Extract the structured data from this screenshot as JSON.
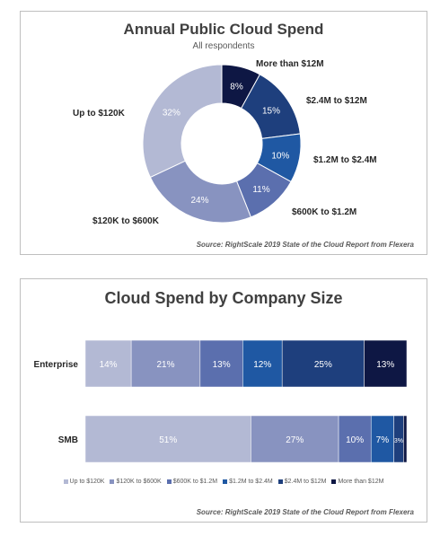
{
  "colors": {
    "up_to_120k": "#b3b9d4",
    "k120_to_600k": "#8893c0",
    "k600_to_1_2m": "#5b6fae",
    "m1_2_to_2_4m": "#1f58a3",
    "m2_4_to_12m": "#1e3f7d",
    "more_than_12m": "#0e1744"
  },
  "chart_data": [
    {
      "type": "pie",
      "donut": true,
      "title": "Annual Public Cloud Spend",
      "subtitle": "All respondents",
      "source": "Source: RightScale 2019 State of the Cloud Report from Flexera",
      "slices": [
        {
          "label": "More than $12M",
          "value": 8,
          "display": "8%"
        },
        {
          "label": "$2.4M to $12M",
          "value": 15,
          "display": "15%"
        },
        {
          "label": "$1.2M to $2.4M",
          "value": 10,
          "display": "10%"
        },
        {
          "label": "$600K to $1.2M",
          "value": 11,
          "display": "11%"
        },
        {
          "label": "$120K to $600K",
          "value": 24,
          "display": "24%"
        },
        {
          "label": "Up to $120K",
          "value": 32,
          "display": "32%"
        }
      ]
    },
    {
      "type": "bar",
      "stacked": true,
      "orientation": "horizontal",
      "title": "Cloud Spend by Company Size",
      "source": "Source: RightScale 2019 State of the Cloud Report from Flexera",
      "categories": [
        "Enterprise",
        "SMB"
      ],
      "series": [
        {
          "name": "Up to $120K",
          "values": [
            14,
            51
          ],
          "labels": [
            "14%",
            "51%"
          ]
        },
        {
          "name": "$120K to $600K",
          "values": [
            21,
            27
          ],
          "labels": [
            "21%",
            "27%"
          ]
        },
        {
          "name": "$600K to $1.2M",
          "values": [
            13,
            10
          ],
          "labels": [
            "13%",
            "10%"
          ]
        },
        {
          "name": "$1.2M to $2.4M",
          "values": [
            12,
            7
          ],
          "labels": [
            "12%",
            "7%"
          ]
        },
        {
          "name": "$2.4M to $12M",
          "values": [
            25,
            3
          ],
          "labels": [
            "25%",
            "3%"
          ]
        },
        {
          "name": "More than $12M",
          "values": [
            13,
            1
          ],
          "labels": [
            "13%",
            ""
          ]
        }
      ],
      "legend_position": "bottom"
    }
  ]
}
